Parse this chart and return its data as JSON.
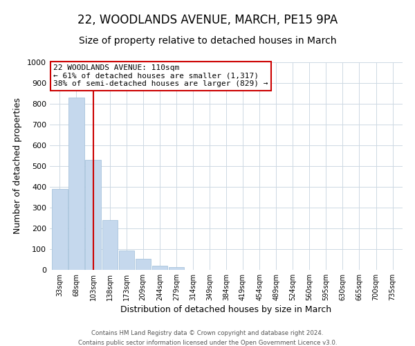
{
  "title": "22, WOODLANDS AVENUE, MARCH, PE15 9PA",
  "subtitle": "Size of property relative to detached houses in March",
  "xlabel": "Distribution of detached houses by size in March",
  "ylabel": "Number of detached properties",
  "bar_labels": [
    "33sqm",
    "68sqm",
    "103sqm",
    "138sqm",
    "173sqm",
    "209sqm",
    "244sqm",
    "279sqm",
    "314sqm",
    "349sqm",
    "384sqm",
    "419sqm",
    "454sqm",
    "489sqm",
    "524sqm",
    "560sqm",
    "595sqm",
    "630sqm",
    "665sqm",
    "700sqm",
    "735sqm"
  ],
  "bar_values": [
    390,
    829,
    530,
    240,
    95,
    52,
    20,
    13,
    0,
    0,
    0,
    0,
    0,
    0,
    0,
    0,
    0,
    0,
    0,
    0,
    0
  ],
  "bar_color": "#c5d8ed",
  "bar_edge_color": "#a8c4dc",
  "ylim": [
    0,
    1000
  ],
  "yticks": [
    0,
    100,
    200,
    300,
    400,
    500,
    600,
    700,
    800,
    900,
    1000
  ],
  "vline_x_index": 2,
  "vline_color": "#cc0000",
  "annotation_title": "22 WOODLANDS AVENUE: 110sqm",
  "annotation_line1": "← 61% of detached houses are smaller (1,317)",
  "annotation_line2": "38% of semi-detached houses are larger (829) →",
  "annotation_box_color": "#cc0000",
  "footer_line1": "Contains HM Land Registry data © Crown copyright and database right 2024.",
  "footer_line2": "Contains public sector information licensed under the Open Government Licence v3.0.",
  "background_color": "#ffffff",
  "grid_color": "#cdd8e3",
  "title_fontsize": 12,
  "subtitle_fontsize": 10,
  "ylabel_fontsize": 9,
  "xlabel_fontsize": 9
}
